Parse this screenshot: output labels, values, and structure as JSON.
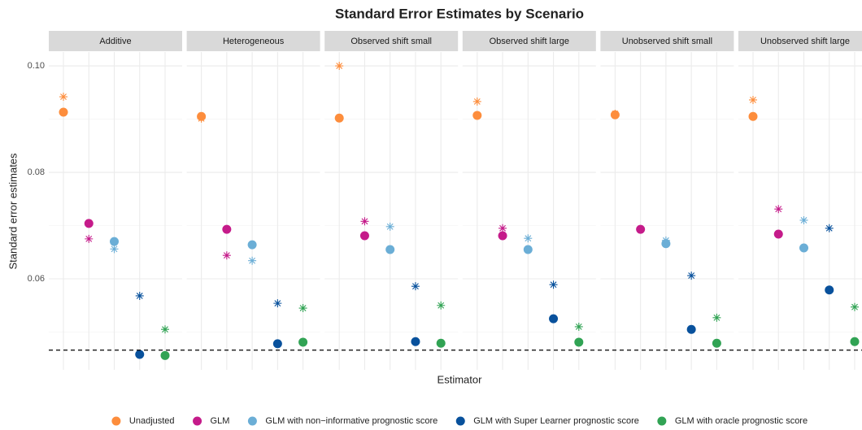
{
  "chart_data": {
    "type": "scatter",
    "title": "Standard Error Estimates by Scenario",
    "x_label": "Estimator",
    "y_label": "Standard error estimates",
    "categories": [
      "Unadjusted",
      "GLM",
      "GLM with non−informative prognostic score",
      "GLM with Super Learner prognostic score",
      "GLM with oracle prognostic score"
    ],
    "colors": [
      "#fd8d3c",
      "#c51b8a",
      "#6baed6",
      "#08519c",
      "#31a354"
    ],
    "ylim": [
      0.0429,
      0.1026
    ],
    "yticks": [
      0.06,
      0.08,
      {
        "value": 0.1,
        "label": "0.10"
      }
    ],
    "minor_yticks": [
      0.05,
      0.07,
      0.09
    ],
    "reference_line": 0.0466,
    "grid": true,
    "legend": "bottom",
    "facets": [
      {
        "label": "Additive",
        "point_values": [
          0.0913,
          0.0704,
          0.067,
          0.0458,
          0.0456
        ],
        "star_values": [
          0.0942,
          0.0675,
          0.0656,
          0.0568,
          0.0505
        ]
      },
      {
        "label": "Heterogeneous",
        "point_values": [
          0.0905,
          0.0693,
          0.0664,
          0.0478,
          0.0481
        ],
        "star_values": [
          0.0901,
          0.0644,
          0.0634,
          0.0554,
          0.0545
        ]
      },
      {
        "label": "Observed shift small",
        "point_values": [
          0.0902,
          0.0681,
          0.0655,
          0.0482,
          0.0479
        ],
        "star_values": [
          0.1,
          0.0708,
          0.0698,
          0.0586,
          0.055
        ]
      },
      {
        "label": "Observed shift large",
        "point_values": [
          0.0907,
          0.0681,
          0.0655,
          0.0525,
          0.0481
        ],
        "star_values": [
          0.0933,
          0.0695,
          0.0676,
          0.0589,
          0.051
        ]
      },
      {
        "label": "Unobserved shift small",
        "point_values": [
          0.0908,
          0.0693,
          0.0666,
          0.0505,
          0.0479
        ],
        "star_values": [
          0.091,
          0.0693,
          0.0672,
          0.0606,
          0.0527
        ]
      },
      {
        "label": "Unobserved shift large",
        "point_values": [
          0.0905,
          0.0684,
          0.0658,
          0.0579,
          0.0482
        ],
        "star_values": [
          0.0936,
          0.0731,
          0.071,
          0.0695,
          0.0547
        ]
      }
    ]
  }
}
